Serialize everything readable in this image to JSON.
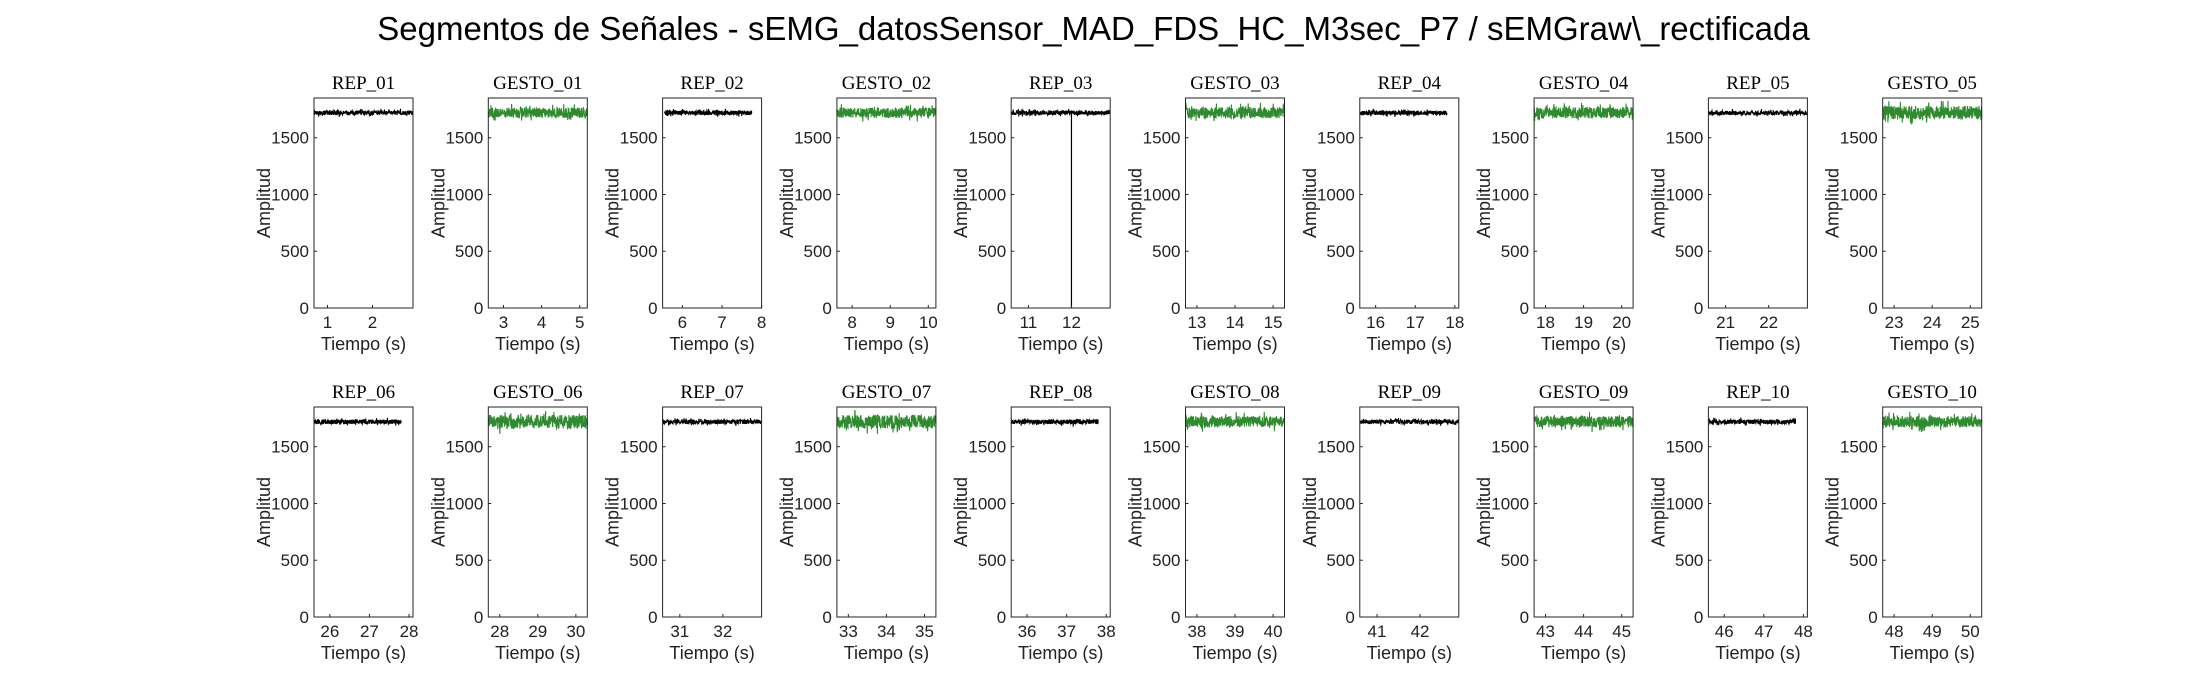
{
  "title": "Segmentos de Señales - sEMG_datosSensor_MAD_FDS_HC_M3sec_P7 / sEMGraw\\_rectificada",
  "colors": {
    "rep": "#000000",
    "gesto": "#2e8b2e"
  },
  "chart_data": {
    "type": "line",
    "grid": false,
    "subplots": [
      {
        "title": "REP_01",
        "series_type": "rep",
        "xlim": [
          0.7,
          2.9
        ],
        "xticks": [
          "1",
          "2"
        ],
        "ylim": [
          0,
          1850
        ],
        "yticks": [
          "0",
          "500",
          "1000",
          "1500"
        ],
        "xlabel": "Tiempo (s)",
        "ylabel": "Amplitud",
        "x_range": [
          0.7,
          2.9
        ],
        "baseline": 1720,
        "noise": 20
      },
      {
        "title": "GESTO_01",
        "series_type": "gesto",
        "xlim": [
          2.6,
          5.2
        ],
        "xticks": [
          "3",
          "4",
          "5"
        ],
        "ylim": [
          0,
          1850
        ],
        "yticks": [
          "0",
          "500",
          "1000",
          "1500"
        ],
        "xlabel": "Tiempo (s)",
        "ylabel": "Amplitud",
        "x_range": [
          2.6,
          5.2
        ],
        "baseline": 1720,
        "noise": 45
      },
      {
        "title": "REP_02",
        "series_type": "rep",
        "xlim": [
          5.5,
          8.0
        ],
        "xticks": [
          "6",
          "7",
          "8"
        ],
        "ylim": [
          0,
          1850
        ],
        "yticks": [
          "0",
          "500",
          "1000",
          "1500"
        ],
        "xlabel": "Tiempo (s)",
        "ylabel": "Amplitud",
        "x_range": [
          5.55,
          7.75
        ],
        "baseline": 1720,
        "noise": 20
      },
      {
        "title": "GESTO_02",
        "series_type": "gesto",
        "xlim": [
          7.6,
          10.2
        ],
        "xticks": [
          "8",
          "9",
          "10"
        ],
        "ylim": [
          0,
          1850
        ],
        "yticks": [
          "0",
          "500",
          "1000",
          "1500"
        ],
        "xlabel": "Tiempo (s)",
        "ylabel": "Amplitud",
        "x_range": [
          7.6,
          10.2
        ],
        "baseline": 1720,
        "noise": 45
      },
      {
        "title": "REP_03",
        "series_type": "rep",
        "xlim": [
          10.6,
          12.9
        ],
        "xticks": [
          "11",
          "12"
        ],
        "ylim": [
          0,
          1850
        ],
        "yticks": [
          "0",
          "500",
          "1000",
          "1500"
        ],
        "xlabel": "Tiempo (s)",
        "ylabel": "Amplitud",
        "x_range": [
          10.6,
          12.9
        ],
        "baseline": 1720,
        "noise": 20,
        "spike_at": 12.0
      },
      {
        "title": "GESTO_03",
        "series_type": "gesto",
        "xlim": [
          12.7,
          15.3
        ],
        "xticks": [
          "13",
          "14",
          "15"
        ],
        "ylim": [
          0,
          1850
        ],
        "yticks": [
          "0",
          "500",
          "1000",
          "1500"
        ],
        "xlabel": "Tiempo (s)",
        "ylabel": "Amplitud",
        "x_range": [
          12.7,
          15.3
        ],
        "baseline": 1720,
        "noise": 50
      },
      {
        "title": "REP_04",
        "series_type": "rep",
        "xlim": [
          15.6,
          18.1
        ],
        "xticks": [
          "16",
          "17",
          "18"
        ],
        "ylim": [
          0,
          1850
        ],
        "yticks": [
          "0",
          "500",
          "1000",
          "1500"
        ],
        "xlabel": "Tiempo (s)",
        "ylabel": "Amplitud",
        "x_range": [
          15.6,
          17.8
        ],
        "baseline": 1720,
        "noise": 20
      },
      {
        "title": "GESTO_04",
        "series_type": "gesto",
        "xlim": [
          17.7,
          20.3
        ],
        "xticks": [
          "18",
          "19",
          "20"
        ],
        "ylim": [
          0,
          1850
        ],
        "yticks": [
          "0",
          "500",
          "1000",
          "1500"
        ],
        "xlabel": "Tiempo (s)",
        "ylabel": "Amplitud",
        "x_range": [
          17.7,
          20.3
        ],
        "baseline": 1720,
        "noise": 50
      },
      {
        "title": "REP_05",
        "series_type": "rep",
        "xlim": [
          20.6,
          22.9
        ],
        "xticks": [
          "21",
          "22"
        ],
        "ylim": [
          0,
          1850
        ],
        "yticks": [
          "0",
          "500",
          "1000",
          "1500"
        ],
        "xlabel": "Tiempo (s)",
        "ylabel": "Amplitud",
        "x_range": [
          20.6,
          22.9
        ],
        "baseline": 1720,
        "noise": 20
      },
      {
        "title": "GESTO_05",
        "series_type": "gesto",
        "xlim": [
          22.7,
          25.3
        ],
        "xticks": [
          "23",
          "24",
          "25"
        ],
        "ylim": [
          0,
          1850
        ],
        "yticks": [
          "0",
          "500",
          "1000",
          "1500"
        ],
        "xlabel": "Tiempo (s)",
        "ylabel": "Amplitud",
        "x_range": [
          22.7,
          25.3
        ],
        "baseline": 1720,
        "noise": 60
      },
      {
        "title": "REP_06",
        "series_type": "rep",
        "xlim": [
          25.6,
          28.1
        ],
        "xticks": [
          "26",
          "27",
          "28"
        ],
        "ylim": [
          0,
          1850
        ],
        "yticks": [
          "0",
          "500",
          "1000",
          "1500"
        ],
        "xlabel": "Tiempo (s)",
        "ylabel": "Amplitud",
        "x_range": [
          25.6,
          27.8
        ],
        "baseline": 1720,
        "noise": 20
      },
      {
        "title": "GESTO_06",
        "series_type": "gesto",
        "xlim": [
          27.7,
          30.3
        ],
        "xticks": [
          "28",
          "29",
          "30"
        ],
        "ylim": [
          0,
          1850
        ],
        "yticks": [
          "0",
          "500",
          "1000",
          "1500"
        ],
        "xlabel": "Tiempo (s)",
        "ylabel": "Amplitud",
        "x_range": [
          27.7,
          30.3
        ],
        "baseline": 1720,
        "noise": 60
      },
      {
        "title": "REP_07",
        "series_type": "rep",
        "xlim": [
          30.6,
          32.9
        ],
        "xticks": [
          "31",
          "32"
        ],
        "ylim": [
          0,
          1850
        ],
        "yticks": [
          "0",
          "500",
          "1000",
          "1500"
        ],
        "xlabel": "Tiempo (s)",
        "ylabel": "Amplitud",
        "x_range": [
          30.6,
          32.9
        ],
        "baseline": 1720,
        "noise": 20
      },
      {
        "title": "GESTO_07",
        "series_type": "gesto",
        "xlim": [
          32.7,
          35.3
        ],
        "xticks": [
          "33",
          "34",
          "35"
        ],
        "ylim": [
          0,
          1850
        ],
        "yticks": [
          "0",
          "500",
          "1000",
          "1500"
        ],
        "xlabel": "Tiempo (s)",
        "ylabel": "Amplitud",
        "x_range": [
          32.7,
          35.3
        ],
        "baseline": 1720,
        "noise": 60
      },
      {
        "title": "REP_08",
        "series_type": "rep",
        "xlim": [
          35.6,
          38.1
        ],
        "xticks": [
          "36",
          "37",
          "38"
        ],
        "ylim": [
          0,
          1850
        ],
        "yticks": [
          "0",
          "500",
          "1000",
          "1500"
        ],
        "xlabel": "Tiempo (s)",
        "ylabel": "Amplitud",
        "x_range": [
          35.6,
          37.8
        ],
        "baseline": 1720,
        "noise": 20
      },
      {
        "title": "GESTO_08",
        "series_type": "gesto",
        "xlim": [
          37.7,
          40.3
        ],
        "xticks": [
          "38",
          "39",
          "40"
        ],
        "ylim": [
          0,
          1850
        ],
        "yticks": [
          "0",
          "500",
          "1000",
          "1500"
        ],
        "xlabel": "Tiempo (s)",
        "ylabel": "Amplitud",
        "x_range": [
          37.7,
          40.3
        ],
        "baseline": 1720,
        "noise": 50
      },
      {
        "title": "REP_09",
        "series_type": "rep",
        "xlim": [
          40.6,
          42.9
        ],
        "xticks": [
          "41",
          "42"
        ],
        "ylim": [
          0,
          1850
        ],
        "yticks": [
          "0",
          "500",
          "1000",
          "1500"
        ],
        "xlabel": "Tiempo (s)",
        "ylabel": "Amplitud",
        "x_range": [
          40.6,
          42.9
        ],
        "baseline": 1720,
        "noise": 20
      },
      {
        "title": "GESTO_09",
        "series_type": "gesto",
        "xlim": [
          42.7,
          45.3
        ],
        "xticks": [
          "43",
          "44",
          "45"
        ],
        "ylim": [
          0,
          1850
        ],
        "yticks": [
          "0",
          "500",
          "1000",
          "1500"
        ],
        "xlabel": "Tiempo (s)",
        "ylabel": "Amplitud",
        "x_range": [
          42.7,
          45.3
        ],
        "baseline": 1720,
        "noise": 50
      },
      {
        "title": "REP_10",
        "series_type": "rep",
        "xlim": [
          45.6,
          48.1
        ],
        "xticks": [
          "46",
          "47",
          "48"
        ],
        "ylim": [
          0,
          1850
        ],
        "yticks": [
          "0",
          "500",
          "1000",
          "1500"
        ],
        "xlabel": "Tiempo (s)",
        "ylabel": "Amplitud",
        "x_range": [
          45.6,
          47.8
        ],
        "baseline": 1720,
        "noise": 20
      },
      {
        "title": "GESTO_10",
        "series_type": "gesto",
        "xlim": [
          47.7,
          50.3
        ],
        "xticks": [
          "48",
          "49",
          "50"
        ],
        "ylim": [
          0,
          1850
        ],
        "yticks": [
          "0",
          "500",
          "1000",
          "1500"
        ],
        "xlabel": "Tiempo (s)",
        "ylabel": "Amplitud",
        "x_range": [
          47.7,
          50.3
        ],
        "baseline": 1720,
        "noise": 50
      }
    ]
  }
}
